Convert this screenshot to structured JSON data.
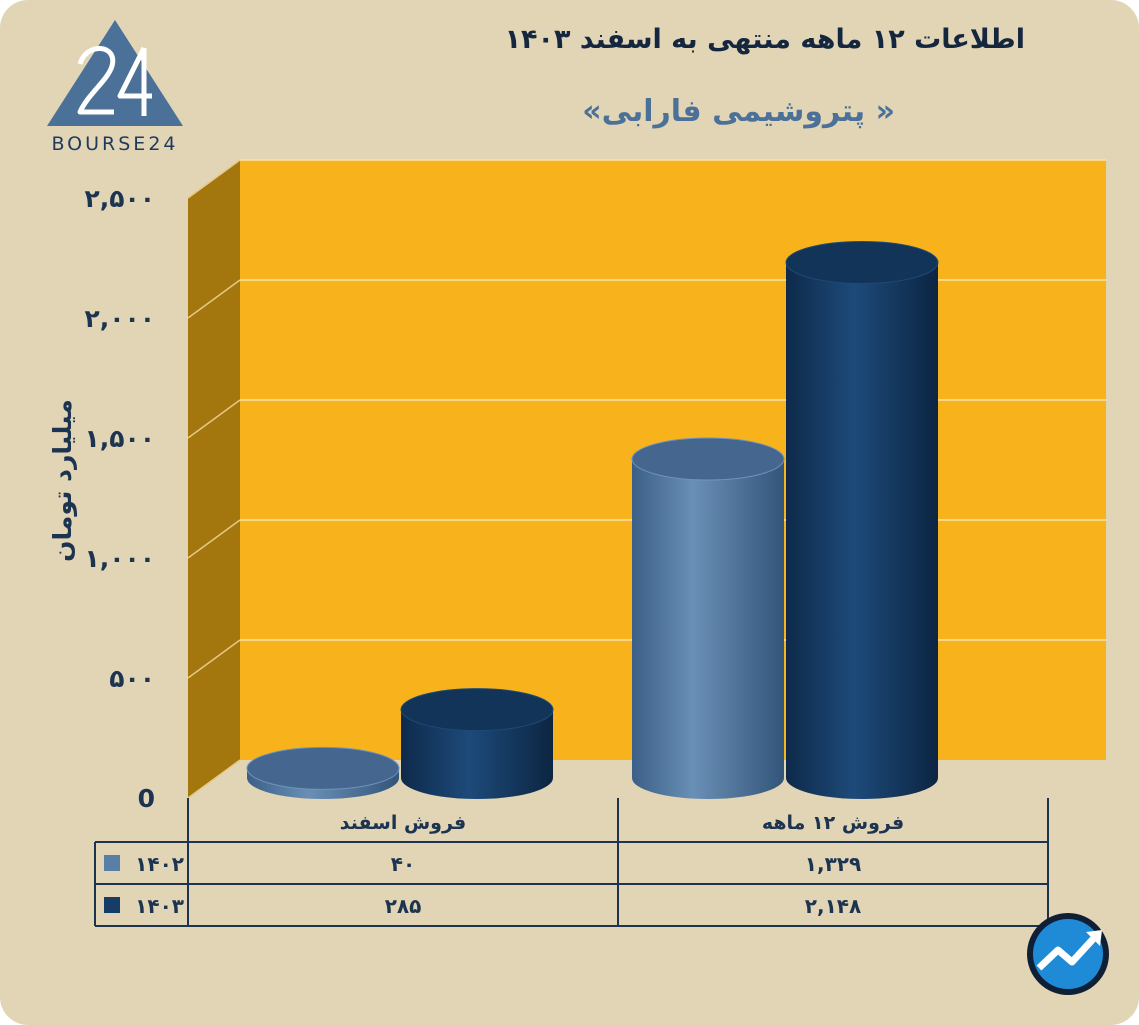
{
  "logo": {
    "text": "BOURSE24"
  },
  "chart_data": {
    "type": "bar",
    "title": "اطلاعات ۱۲ ماهه منتهی به اسفند ۱۴۰۳",
    "subtitle": "« پتروشیمی فارابی»",
    "ylabel": "میلیارد تومان",
    "ylim": [
      0,
      2500
    ],
    "yticks": [
      0,
      500,
      1000,
      1500,
      2000,
      2500
    ],
    "ytick_labels": [
      "0",
      "۵۰۰",
      "۱,۰۰۰",
      "۱,۵۰۰",
      "۲,۰۰۰",
      "۲,۵۰۰"
    ],
    "categories": [
      "فروش اسفند",
      "فروش ۱۲ ماهه"
    ],
    "series": [
      {
        "name": "۱۴۰۲",
        "values": [
          40,
          1329
        ],
        "labels": [
          "۴۰",
          "۱,۳۲۹"
        ],
        "color": "#5a7fa6"
      },
      {
        "name": "۱۴۰۳",
        "values": [
          285,
          2148
        ],
        "labels": [
          "۲۸۵",
          "۲,۱۴۸"
        ],
        "color": "#173d66"
      }
    ],
    "grid": true,
    "legend": "table-left",
    "colors": {
      "plot": "#f8b31c",
      "side_wall": "#a4760e",
      "background": "#e1d5b6",
      "text": "#1d3451"
    }
  }
}
